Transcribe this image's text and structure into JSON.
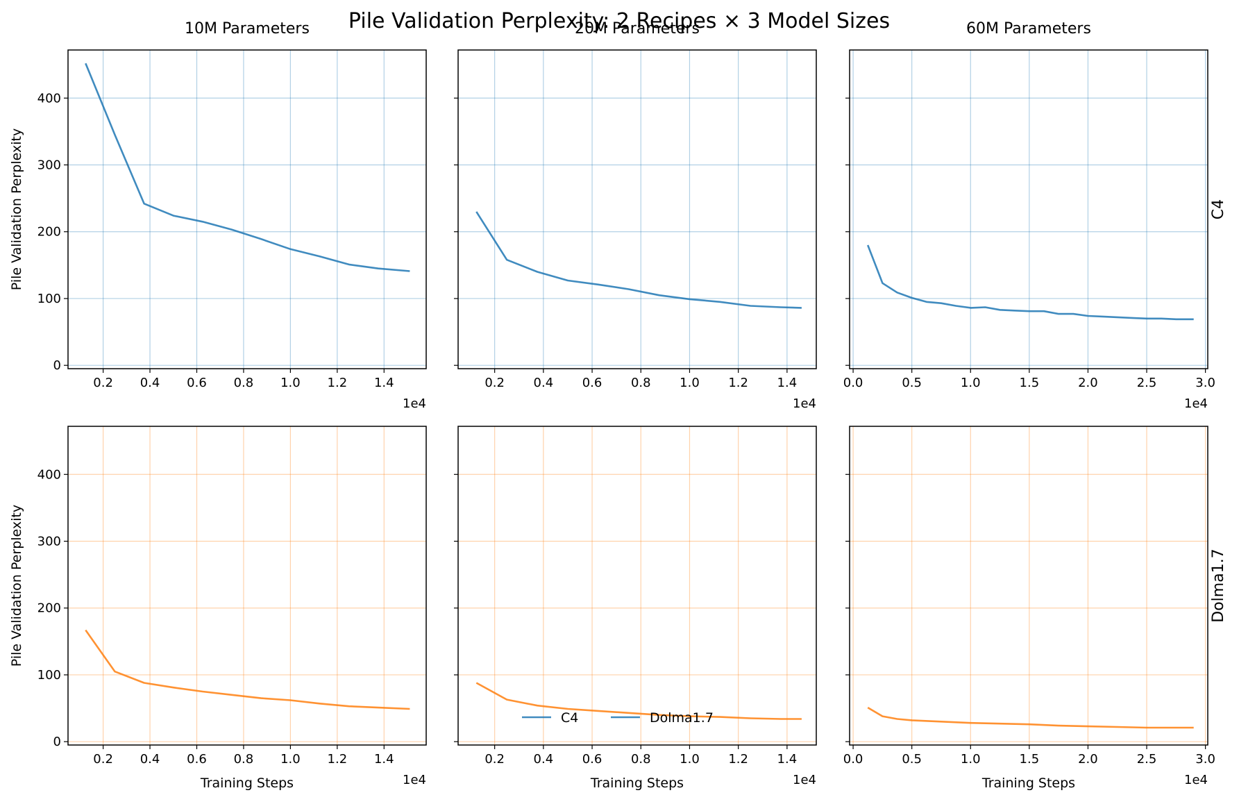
{
  "figure": {
    "title": "Pile Validation Perplexity: 2 Recipes × 3 Model Sizes",
    "colors": {
      "c4": "#1f77b4",
      "dolma": "#ff7f0e"
    },
    "legend": {
      "placement": "lower-center",
      "entries": [
        "C4",
        "Dolma1.7"
      ]
    }
  },
  "chart_data": [
    {
      "type": "line",
      "row_label": "C4",
      "column_title": "10M Parameters",
      "ylabel": "Pile Validation Perplexity",
      "xlabel": "",
      "x_multiplier_label": "1e4",
      "xlim": [
        500,
        15800
      ],
      "ylim": [
        -5,
        472
      ],
      "xticks": [
        2000,
        4000,
        6000,
        8000,
        10000,
        12000,
        14000
      ],
      "xtick_labels": [
        "0.2",
        "0.4",
        "0.6",
        "0.8",
        "1.0",
        "1.2",
        "1.4"
      ],
      "yticks": [
        0,
        100,
        200,
        300,
        400
      ],
      "ytick_labels": [
        "0",
        "100",
        "200",
        "300",
        "400"
      ],
      "grid": true,
      "series": [
        {
          "color": "#1f77b4",
          "x": [
            1250,
            2500,
            3750,
            5000,
            6250,
            7500,
            8750,
            10000,
            11250,
            12500,
            13750,
            15100
          ],
          "y": [
            452,
            345,
            242,
            224,
            215,
            203,
            189,
            174,
            163,
            151,
            145,
            141
          ]
        }
      ]
    },
    {
      "type": "line",
      "row_label": "C4",
      "column_title": "20M Parameters",
      "ylabel": "",
      "xlabel": "",
      "x_multiplier_label": "1e4",
      "xlim": [
        500,
        15200
      ],
      "ylim": [
        -5,
        472
      ],
      "xticks": [
        2000,
        4000,
        6000,
        8000,
        10000,
        12000,
        14000
      ],
      "xtick_labels": [
        "0.2",
        "0.4",
        "0.6",
        "0.8",
        "1.0",
        "1.2",
        "1.4"
      ],
      "yticks": [
        0,
        100,
        200,
        300,
        400
      ],
      "ytick_labels": [
        "",
        "",
        "",
        "",
        ""
      ],
      "grid": true,
      "series": [
        {
          "color": "#1f77b4",
          "x": [
            1250,
            2500,
            3750,
            5000,
            6250,
            7500,
            8750,
            10000,
            11250,
            12500,
            13750,
            14600
          ],
          "y": [
            230,
            158,
            140,
            127,
            121,
            114,
            105,
            99,
            95,
            89,
            87,
            86
          ]
        }
      ]
    },
    {
      "type": "line",
      "row_label": "C4",
      "column_title": "60M Parameters",
      "ylabel": "",
      "xlabel": "",
      "x_multiplier_label": "1e4",
      "xlim": [
        -300,
        30200
      ],
      "ylim": [
        -5,
        472
      ],
      "xticks": [
        0,
        5000,
        10000,
        15000,
        20000,
        25000,
        30000
      ],
      "xtick_labels": [
        "0.0",
        "0.5",
        "1.0",
        "1.5",
        "2.0",
        "2.5",
        "3.0"
      ],
      "yticks": [
        0,
        100,
        200,
        300,
        400
      ],
      "ytick_labels": [
        "",
        "",
        "",
        "",
        ""
      ],
      "grid": true,
      "series": [
        {
          "color": "#1f77b4",
          "x": [
            1250,
            2500,
            3750,
            5000,
            6250,
            7500,
            8750,
            10000,
            11250,
            12500,
            13750,
            15000,
            16250,
            17500,
            18750,
            20000,
            21250,
            22500,
            23750,
            25000,
            26250,
            27500,
            29000
          ],
          "y": [
            180,
            123,
            109,
            101,
            95,
            93,
            89,
            86,
            87,
            83,
            82,
            81,
            81,
            77,
            77,
            74,
            73,
            72,
            71,
            70,
            70,
            69,
            69
          ]
        }
      ]
    },
    {
      "type": "line",
      "row_label": "Dolma1.7",
      "column_title": "",
      "ylabel": "Pile Validation Perplexity",
      "xlabel": "Training Steps",
      "x_multiplier_label": "1e4",
      "xlim": [
        500,
        15800
      ],
      "ylim": [
        -5,
        472
      ],
      "xticks": [
        2000,
        4000,
        6000,
        8000,
        10000,
        12000,
        14000
      ],
      "xtick_labels": [
        "0.2",
        "0.4",
        "0.6",
        "0.8",
        "1.0",
        "1.2",
        "1.4"
      ],
      "yticks": [
        0,
        100,
        200,
        300,
        400
      ],
      "ytick_labels": [
        "0",
        "100",
        "200",
        "300",
        "400"
      ],
      "grid": true,
      "series": [
        {
          "color": "#ff7f0e",
          "x": [
            1250,
            2500,
            3750,
            5000,
            6250,
            7500,
            8750,
            10000,
            11250,
            12500,
            13750,
            15100
          ],
          "y": [
            167,
            105,
            88,
            81,
            75,
            70,
            65,
            62,
            57,
            53,
            51,
            49
          ]
        }
      ]
    },
    {
      "type": "line",
      "row_label": "Dolma1.7",
      "column_title": "",
      "ylabel": "",
      "xlabel": "Training Steps",
      "x_multiplier_label": "1e4",
      "xlim": [
        500,
        15200
      ],
      "ylim": [
        -5,
        472
      ],
      "xticks": [
        2000,
        4000,
        6000,
        8000,
        10000,
        12000,
        14000
      ],
      "xtick_labels": [
        "0.2",
        "0.4",
        "0.6",
        "0.8",
        "1.0",
        "1.2",
        "1.4"
      ],
      "yticks": [
        0,
        100,
        200,
        300,
        400
      ],
      "ytick_labels": [
        "",
        "",
        "",
        "",
        ""
      ],
      "grid": true,
      "series": [
        {
          "color": "#ff7f0e",
          "x": [
            1250,
            2500,
            3750,
            5000,
            6250,
            7500,
            8750,
            10000,
            11250,
            12500,
            13750,
            14600
          ],
          "y": [
            88,
            63,
            54,
            49,
            46,
            43,
            40,
            38,
            37,
            35,
            34,
            34
          ]
        }
      ]
    },
    {
      "type": "line",
      "row_label": "Dolma1.7",
      "column_title": "",
      "ylabel": "",
      "xlabel": "Training Steps",
      "x_multiplier_label": "1e4",
      "xlim": [
        -300,
        30200
      ],
      "ylim": [
        -5,
        472
      ],
      "xticks": [
        0,
        5000,
        10000,
        15000,
        20000,
        25000,
        30000
      ],
      "xtick_labels": [
        "0.0",
        "0.5",
        "1.0",
        "1.5",
        "2.0",
        "2.5",
        "3.0"
      ],
      "yticks": [
        0,
        100,
        200,
        300,
        400
      ],
      "ytick_labels": [
        "",
        "",
        "",
        "",
        ""
      ],
      "grid": true,
      "series": [
        {
          "color": "#ff7f0e",
          "x": [
            1250,
            2500,
            3750,
            5000,
            7500,
            10000,
            12500,
            15000,
            17500,
            20000,
            22500,
            25000,
            27500,
            29000
          ],
          "y": [
            51,
            38,
            34,
            32,
            30,
            28,
            27,
            26,
            24,
            23,
            22,
            21,
            21,
            21
          ]
        }
      ]
    }
  ]
}
